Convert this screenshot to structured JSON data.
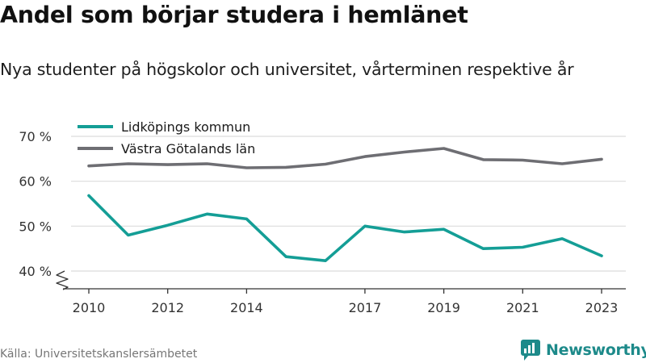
{
  "header": {
    "title": "Andel som börjar studera i hemlänet",
    "subtitle": "Nya studenter på högskolor och universitet, vårterminen respektive år"
  },
  "footer": {
    "source": "Källa: Universitetskanslersämbetet",
    "brand": "Newsworthy"
  },
  "colors": {
    "lidkoping": "#149e96",
    "vastra_gotaland": "#6e6e73",
    "grid": "#dcdcdc",
    "axis": "#333333",
    "text": "#333333"
  },
  "chart_data": {
    "type": "line",
    "title": "Andel som börjar studera i hemlänet",
    "subtitle": "Nya studenter på högskolor och universitet, vårterminen respektive år",
    "xlabel": "",
    "ylabel": "",
    "x": [
      2010,
      2011,
      2012,
      2013,
      2014,
      2015,
      2016,
      2017,
      2018,
      2019,
      2020,
      2021,
      2022,
      2023
    ],
    "x_ticks": [
      2010,
      2012,
      2014,
      2017,
      2019,
      2021,
      2023
    ],
    "x_tick_labels": [
      "2010",
      "2012",
      "2014",
      "2017",
      "2019",
      "2021",
      "2023"
    ],
    "y_ticks": [
      40,
      50,
      60,
      70
    ],
    "y_tick_labels": [
      "40 %",
      "50 %",
      "60 %",
      "70 %"
    ],
    "ylim": [
      40,
      70
    ],
    "y_axis_break": true,
    "grid": "horizontal",
    "legend_position": "top-left",
    "series": [
      {
        "name": "Lidköpings kommun",
        "color": "#149e96",
        "values": [
          56.8,
          48.0,
          50.2,
          52.7,
          51.6,
          43.2,
          42.3,
          50.0,
          48.7,
          49.3,
          45.0,
          45.3,
          47.2,
          43.4
        ]
      },
      {
        "name": "Västra Götalands län",
        "color": "#6e6e73",
        "values": [
          63.4,
          63.9,
          63.7,
          63.9,
          63.0,
          63.1,
          63.8,
          65.5,
          66.5,
          67.3,
          64.8,
          64.7,
          63.9,
          64.9
        ]
      }
    ]
  }
}
